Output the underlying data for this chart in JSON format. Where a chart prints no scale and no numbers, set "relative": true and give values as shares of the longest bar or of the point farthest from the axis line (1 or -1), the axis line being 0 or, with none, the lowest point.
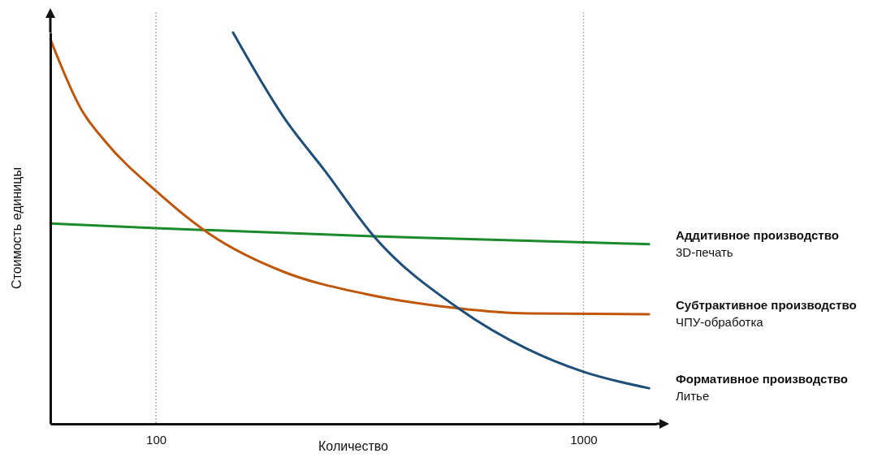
{
  "chart_data": {
    "type": "line",
    "relative": true,
    "log": "x",
    "xlabel": "Количество",
    "ylabel": "Стоимость единицы",
    "xlim": [
      56.6,
      1480
    ],
    "xticks": [
      100,
      1000
    ],
    "grid": "x",
    "marker": "none",
    "line_style": "solid",
    "series": [
      {
        "name": "Аддитивное производство\n3D-печать",
        "color": "#1a8a2a",
        "x": [
          56.6,
          100,
          322.4,
          1424
        ],
        "values": [
          0.512,
          0.5,
          0.479,
          0.459
        ]
      },
      {
        "name": "Субтрактивное производство\nЧПУ-обработка",
        "color": "#c0560a",
        "x": [
          56.6,
          66.9,
          76.3,
          100,
          133.5,
          199.4,
          308.8,
          510,
          739.6,
          1424
        ],
        "values": [
          0.983,
          0.803,
          0.72,
          0.595,
          0.485,
          0.388,
          0.332,
          0.295,
          0.282,
          0.28
        ]
      },
      {
        "name": "Формативное производство\nЛитье",
        "color": "#1f4e79",
        "x": [
          151.4,
          199.4,
          248.2,
          322.4,
          510,
          739.6,
          1000,
          1424
        ],
        "values": [
          1.0,
          0.782,
          0.647,
          0.481,
          0.295,
          0.191,
          0.133,
          0.091
        ]
      }
    ]
  }
}
